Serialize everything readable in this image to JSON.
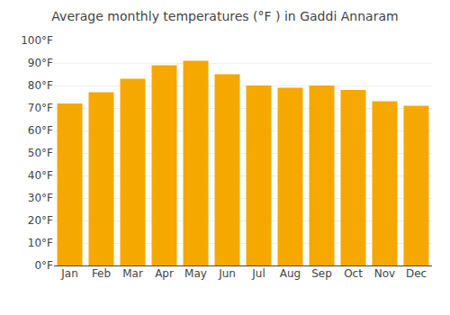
{
  "chart_data": {
    "type": "bar",
    "title": "Average monthly temperatures (°F ) in Gaddi Annaram",
    "categories": [
      "Jan",
      "Feb",
      "Mar",
      "Apr",
      "May",
      "Jun",
      "Jul",
      "Aug",
      "Sep",
      "Oct",
      "Nov",
      "Dec"
    ],
    "values": [
      72,
      77,
      83,
      89,
      91,
      85,
      80,
      79,
      80,
      78,
      73,
      71
    ],
    "color": "#F5A800",
    "ylim": [
      0,
      100
    ],
    "yticks": [
      {
        "value": 0,
        "label": "0°F"
      },
      {
        "value": 10,
        "label": "10°F"
      },
      {
        "value": 20,
        "label": "20°F"
      },
      {
        "value": 30,
        "label": "30°F"
      },
      {
        "value": 40,
        "label": "40°F"
      },
      {
        "value": 50,
        "label": "50°F"
      },
      {
        "value": 60,
        "label": "60°F"
      },
      {
        "value": 70,
        "label": "70°F"
      },
      {
        "value": 80,
        "label": "80°F"
      },
      {
        "value": 90,
        "label": "90°F"
      },
      {
        "value": 100,
        "label": "100°F"
      }
    ],
    "grid": true
  }
}
